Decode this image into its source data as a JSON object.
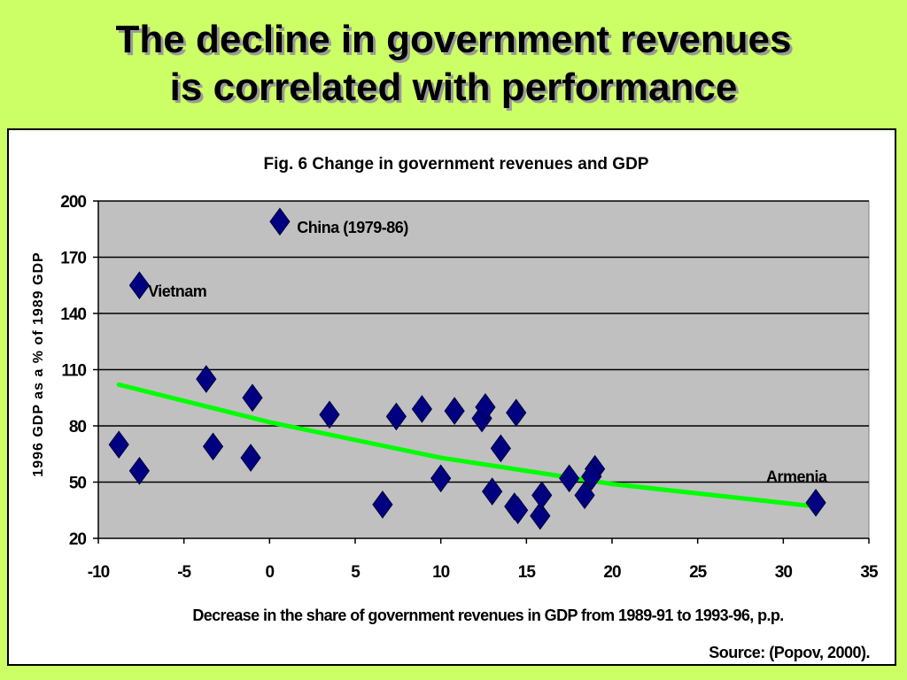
{
  "slide": {
    "title_line1": "The decline in government revenues",
    "title_line2": "is correlated with performance"
  },
  "colors": {
    "background": "#CCFF66",
    "plot_area": "#C0C0C0",
    "marker": "#000080",
    "trendline": "#00FF00",
    "gridline": "#000000"
  },
  "chart_data": {
    "type": "scatter",
    "title": "Fig. 6 Change in government revenues and GDP",
    "xlabel": "Decrease in the share of government revenues in GDP from 1989-91 to 1993-96, p.p.",
    "ylabel": "1996 GDP as a % of 1989 GDP",
    "source": "Source: (Popov, 2000).",
    "xlim": [
      -10,
      35
    ],
    "ylim": [
      20,
      200
    ],
    "xticks": [
      -10,
      -5,
      0,
      5,
      10,
      15,
      20,
      25,
      30,
      35
    ],
    "yticks": [
      20,
      50,
      80,
      110,
      140,
      170,
      200
    ],
    "grid": "horizontal",
    "marker": "diamond",
    "points": [
      {
        "x": 0.6,
        "y": 189
      },
      {
        "x": -7.6,
        "y": 155
      },
      {
        "x": -8.8,
        "y": 70
      },
      {
        "x": -7.6,
        "y": 56
      },
      {
        "x": -3.7,
        "y": 105
      },
      {
        "x": -3.3,
        "y": 69
      },
      {
        "x": -1.0,
        "y": 95
      },
      {
        "x": -1.1,
        "y": 63
      },
      {
        "x": 3.5,
        "y": 86
      },
      {
        "x": 6.6,
        "y": 38
      },
      {
        "x": 7.4,
        "y": 85
      },
      {
        "x": 8.9,
        "y": 89
      },
      {
        "x": 10.0,
        "y": 52
      },
      {
        "x": 10.8,
        "y": 88
      },
      {
        "x": 12.4,
        "y": 84
      },
      {
        "x": 12.6,
        "y": 90
      },
      {
        "x": 13.0,
        "y": 45
      },
      {
        "x": 13.5,
        "y": 68
      },
      {
        "x": 14.4,
        "y": 87
      },
      {
        "x": 14.3,
        "y": 37
      },
      {
        "x": 14.5,
        "y": 35
      },
      {
        "x": 15.8,
        "y": 32
      },
      {
        "x": 15.9,
        "y": 43
      },
      {
        "x": 17.5,
        "y": 52
      },
      {
        "x": 18.4,
        "y": 43
      },
      {
        "x": 19.0,
        "y": 57
      },
      {
        "x": 18.8,
        "y": 53
      },
      {
        "x": 31.9,
        "y": 39
      }
    ],
    "trendline": [
      {
        "x": -8.8,
        "y": 102
      },
      {
        "x": 0,
        "y": 82
      },
      {
        "x": 10,
        "y": 63
      },
      {
        "x": 20,
        "y": 49
      },
      {
        "x": 31.9,
        "y": 37
      }
    ],
    "annotations": [
      {
        "text": "China (1979-86)",
        "x": 1.6,
        "y": 183
      },
      {
        "text": "Vietnam",
        "x": -7.1,
        "y": 149
      },
      {
        "text": "Armenia",
        "x": 29.0,
        "y": 50
      }
    ]
  }
}
